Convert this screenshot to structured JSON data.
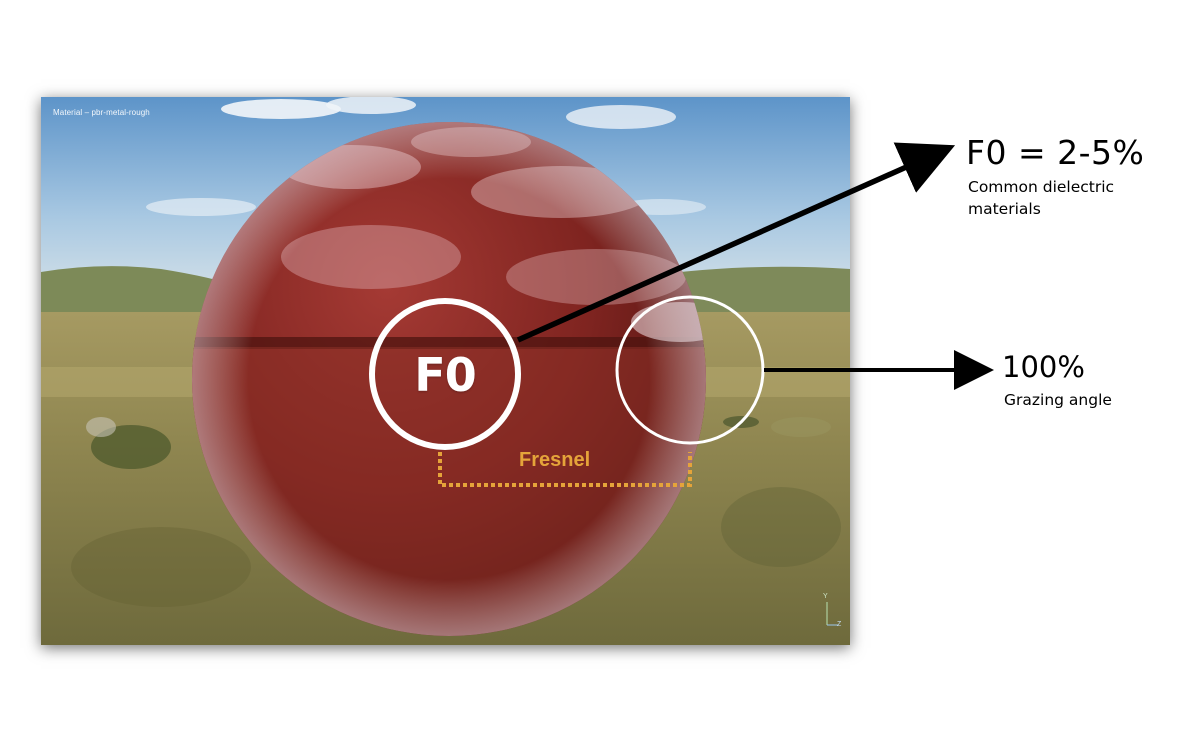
{
  "viewport": {
    "title": "Material – pbr-metal-rough",
    "axis_labels": {
      "y": "Y",
      "z": "Z"
    }
  },
  "sphere": {
    "color": "#8a2520"
  },
  "markers": {
    "f0_label": "F0",
    "fresnel_label": "Fresnel",
    "circle_color": "#ffffff",
    "bracket_color": "#e5a43a"
  },
  "annotations": {
    "f0_value": "F0 = 2-5%",
    "f0_description": "Common dielectric materials",
    "grazing_value": "100%",
    "grazing_description": "Grazing angle",
    "arrow_color": "#000000"
  }
}
